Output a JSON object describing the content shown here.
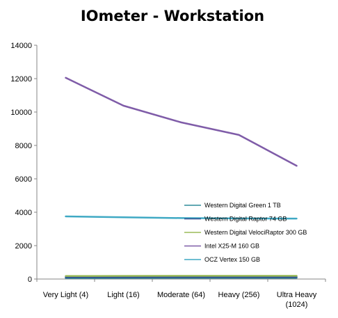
{
  "chart_data": {
    "type": "line",
    "title": "IOmeter - Workstation",
    "xlabel": "",
    "ylabel": "",
    "categories": [
      "Very Light (4)",
      "Light (16)",
      "Moderate (64)",
      "Heavy (256)",
      "Ultra Heavy\n(1024)"
    ],
    "ylim": [
      0,
      14000
    ],
    "yticks": [
      0,
      2000,
      4000,
      6000,
      8000,
      10000,
      12000,
      14000
    ],
    "grid": false,
    "legend_position": "inside-lower-right",
    "series": [
      {
        "name": "Western Digital Green 1 TB",
        "color": "#2E8B9A",
        "values": [
          60,
          70,
          75,
          75,
          75
        ]
      },
      {
        "name": "Western Digital Raptor 74 GB",
        "color": "#2F4F8F",
        "values": [
          110,
          115,
          120,
          120,
          120
        ]
      },
      {
        "name": "Western Digital VelociRaptor 300 GB",
        "color": "#9BBB59",
        "values": [
          180,
          190,
          195,
          195,
          195
        ]
      },
      {
        "name": "Intel X25-M 160 GB",
        "color": "#7F5CA8",
        "values": [
          12050,
          10380,
          9380,
          8630,
          6780
        ]
      },
      {
        "name": "OCZ Vertex 150 GB",
        "color": "#3FA9C4",
        "values": [
          3750,
          3700,
          3650,
          3630,
          3620
        ]
      }
    ]
  }
}
